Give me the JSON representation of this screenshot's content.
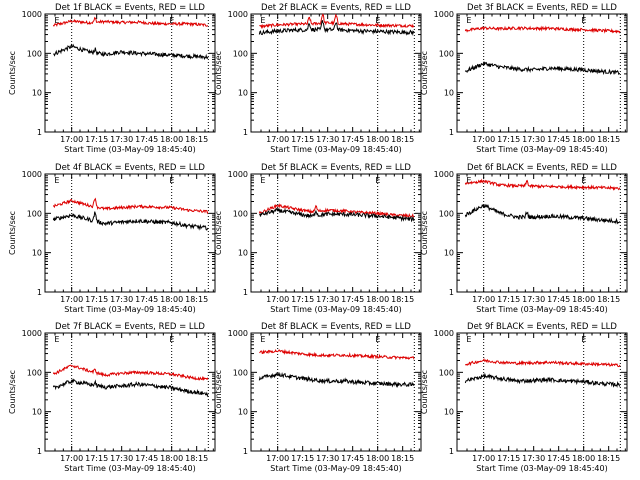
{
  "chart_data": {
    "type": "line",
    "layout": "3x3 grid",
    "shared": {
      "xlabel": "Start Time (03-May-09 18:45:40)",
      "ylabel": "Counts/sec",
      "x_range_minutes": [
        55,
        1100
      ],
      "x_ticks": [
        {
          "value": 0,
          "label": "17:00"
        },
        {
          "value": 15,
          "label": "17:15"
        },
        {
          "value": 30,
          "label": "17:30"
        },
        {
          "value": 45,
          "label": "17:45"
        },
        {
          "value": 60,
          "label": "18:00"
        },
        {
          "value": 75,
          "label": "18:15"
        }
      ],
      "y_scale": "log",
      "ylim": [
        1,
        1000
      ],
      "y_ticks": [
        {
          "value": 1,
          "label": "1"
        },
        {
          "value": 10,
          "label": "10"
        },
        {
          "value": 100,
          "label": "100"
        },
        {
          "value": 1000,
          "label": "1000"
        }
      ],
      "x_start": -11,
      "x_end": 82,
      "dotted_lines_x": [
        0,
        60,
        82
      ],
      "markers": [
        {
          "x": -11,
          "label": "E"
        },
        {
          "x": 58,
          "label": "E"
        }
      ],
      "series_colors": {
        "events": "#000000",
        "lld": "#dd0000"
      }
    },
    "panels": [
      {
        "title": "Det 1f BLACK = Events, RED = LLD",
        "series": [
          {
            "key": "lld",
            "points": [
              [
                -11,
                510
              ],
              [
                0,
                660
              ],
              [
                10,
                600
              ],
              [
                20,
                640
              ],
              [
                30,
                610
              ],
              [
                40,
                620
              ],
              [
                50,
                570
              ],
              [
                60,
                560
              ],
              [
                70,
                560
              ],
              [
                82,
                520
              ]
            ]
          },
          {
            "key": "events",
            "points": [
              [
                -11,
                95
              ],
              [
                0,
                150
              ],
              [
                10,
                110
              ],
              [
                15,
                100
              ],
              [
                20,
                95
              ],
              [
                30,
                110
              ],
              [
                40,
                100
              ],
              [
                50,
                95
              ],
              [
                60,
                90
              ],
              [
                70,
                85
              ],
              [
                82,
                80
              ]
            ]
          }
        ],
        "spikes": [
          {
            "x": 14,
            "events": 130
          }
        ]
      },
      {
        "title": "Det 2f BLACK = Events, RED = LLD",
        "series": [
          {
            "key": "lld",
            "points": [
              [
                -11,
                480
              ],
              [
                0,
                530
              ],
              [
                10,
                550
              ],
              [
                20,
                560
              ],
              [
                30,
                600
              ],
              [
                40,
                560
              ],
              [
                50,
                540
              ],
              [
                60,
                520
              ],
              [
                70,
                510
              ],
              [
                82,
                500
              ]
            ]
          },
          {
            "key": "events",
            "points": [
              [
                -11,
                330
              ],
              [
                0,
                370
              ],
              [
                10,
                390
              ],
              [
                20,
                400
              ],
              [
                30,
                400
              ],
              [
                40,
                390
              ],
              [
                50,
                370
              ],
              [
                60,
                360
              ],
              [
                70,
                350
              ],
              [
                82,
                340
              ]
            ]
          }
        ],
        "spikes": [
          {
            "x": 19,
            "events": 600
          },
          {
            "x": 27,
            "events": 700
          },
          {
            "x": 35,
            "events": 650
          }
        ]
      },
      {
        "title": "Det 3f BLACK = Events, RED = LLD",
        "series": [
          {
            "key": "lld",
            "points": [
              [
                -11,
                380
              ],
              [
                0,
                440
              ],
              [
                10,
                420
              ],
              [
                20,
                440
              ],
              [
                30,
                430
              ],
              [
                40,
                430
              ],
              [
                50,
                410
              ],
              [
                60,
                400
              ],
              [
                70,
                380
              ],
              [
                82,
                360
              ]
            ]
          },
          {
            "key": "events",
            "points": [
              [
                -11,
                35
              ],
              [
                0,
                55
              ],
              [
                10,
                45
              ],
              [
                20,
                40
              ],
              [
                30,
                38
              ],
              [
                40,
                42
              ],
              [
                50,
                40
              ],
              [
                60,
                38
              ],
              [
                70,
                35
              ],
              [
                82,
                32
              ]
            ]
          }
        ],
        "spikes": []
      },
      {
        "title": "Det 4f BLACK = Events, RED = LLD",
        "series": [
          {
            "key": "lld",
            "points": [
              [
                -11,
                150
              ],
              [
                0,
                210
              ],
              [
                10,
                160
              ],
              [
                20,
                130
              ],
              [
                30,
                140
              ],
              [
                40,
                150
              ],
              [
                50,
                145
              ],
              [
                60,
                140
              ],
              [
                70,
                120
              ],
              [
                82,
                110
              ]
            ]
          },
          {
            "key": "events",
            "points": [
              [
                -11,
                70
              ],
              [
                0,
                90
              ],
              [
                10,
                70
              ],
              [
                20,
                55
              ],
              [
                30,
                60
              ],
              [
                40,
                65
              ],
              [
                50,
                60
              ],
              [
                60,
                58
              ],
              [
                70,
                48
              ],
              [
                82,
                42
              ]
            ]
          }
        ],
        "spikes": [
          {
            "x": 14,
            "events": 110
          }
        ]
      },
      {
        "title": "Det 5f BLACK = Events, RED = LLD",
        "series": [
          {
            "key": "lld",
            "points": [
              [
                -11,
                100
              ],
              [
                0,
                160
              ],
              [
                10,
                130
              ],
              [
                20,
                110
              ],
              [
                30,
                120
              ],
              [
                40,
                115
              ],
              [
                50,
                105
              ],
              [
                60,
                100
              ],
              [
                70,
                90
              ],
              [
                82,
                85
              ]
            ]
          },
          {
            "key": "events",
            "points": [
              [
                -11,
                90
              ],
              [
                0,
                120
              ],
              [
                10,
                100
              ],
              [
                20,
                85
              ],
              [
                30,
                95
              ],
              [
                40,
                95
              ],
              [
                50,
                90
              ],
              [
                60,
                85
              ],
              [
                70,
                78
              ],
              [
                82,
                70
              ]
            ]
          }
        ],
        "spikes": [
          {
            "x": 23,
            "events": 120
          }
        ]
      },
      {
        "title": "Det 6f BLACK = Events, RED = LLD",
        "series": [
          {
            "key": "lld",
            "points": [
              [
                -11,
                580
              ],
              [
                0,
                660
              ],
              [
                10,
                520
              ],
              [
                20,
                500
              ],
              [
                30,
                490
              ],
              [
                40,
                480
              ],
              [
                50,
                470
              ],
              [
                60,
                460
              ],
              [
                70,
                450
              ],
              [
                82,
                430
              ]
            ]
          },
          {
            "key": "events",
            "points": [
              [
                -11,
                90
              ],
              [
                0,
                160
              ],
              [
                10,
                100
              ],
              [
                20,
                80
              ],
              [
                30,
                80
              ],
              [
                40,
                85
              ],
              [
                50,
                80
              ],
              [
                60,
                75
              ],
              [
                70,
                68
              ],
              [
                82,
                62
              ]
            ]
          }
        ],
        "spikes": [
          {
            "x": 26,
            "events": 110
          }
        ]
      },
      {
        "title": "Det 7f BLACK = Events, RED = LLD",
        "series": [
          {
            "key": "lld",
            "points": [
              [
                -11,
                90
              ],
              [
                0,
                150
              ],
              [
                10,
                110
              ],
              [
                20,
                85
              ],
              [
                30,
                95
              ],
              [
                40,
                100
              ],
              [
                50,
                95
              ],
              [
                60,
                90
              ],
              [
                70,
                75
              ],
              [
                82,
                65
              ]
            ]
          },
          {
            "key": "events",
            "points": [
              [
                -11,
                40
              ],
              [
                0,
                60
              ],
              [
                10,
                50
              ],
              [
                20,
                42
              ],
              [
                30,
                45
              ],
              [
                40,
                50
              ],
              [
                50,
                45
              ],
              [
                60,
                40
              ],
              [
                70,
                33
              ],
              [
                82,
                28
              ]
            ]
          }
        ],
        "spikes": [
          {
            "x": 14,
            "events": 55
          }
        ]
      },
      {
        "title": "Det 8f BLACK = Events, RED = LLD",
        "series": [
          {
            "key": "lld",
            "points": [
              [
                -11,
                320
              ],
              [
                0,
                350
              ],
              [
                10,
                310
              ],
              [
                20,
                280
              ],
              [
                30,
                270
              ],
              [
                40,
                275
              ],
              [
                50,
                260
              ],
              [
                60,
                250
              ],
              [
                70,
                240
              ],
              [
                82,
                230
              ]
            ]
          },
          {
            "key": "events",
            "points": [
              [
                -11,
                70
              ],
              [
                0,
                90
              ],
              [
                10,
                75
              ],
              [
                20,
                65
              ],
              [
                30,
                60
              ],
              [
                40,
                60
              ],
              [
                50,
                55
              ],
              [
                60,
                52
              ],
              [
                70,
                50
              ],
              [
                82,
                48
              ]
            ]
          }
        ],
        "spikes": []
      },
      {
        "title": "Det 9f BLACK = Events, RED = LLD",
        "series": [
          {
            "key": "lld",
            "points": [
              [
                -11,
                160
              ],
              [
                0,
                200
              ],
              [
                10,
                180
              ],
              [
                20,
                170
              ],
              [
                30,
                175
              ],
              [
                40,
                180
              ],
              [
                50,
                170
              ],
              [
                60,
                165
              ],
              [
                70,
                160
              ],
              [
                82,
                150
              ]
            ]
          },
          {
            "key": "events",
            "points": [
              [
                -11,
                60
              ],
              [
                0,
                80
              ],
              [
                10,
                70
              ],
              [
                20,
                60
              ],
              [
                30,
                62
              ],
              [
                40,
                65
              ],
              [
                50,
                60
              ],
              [
                60,
                58
              ],
              [
                70,
                52
              ],
              [
                82,
                48
              ]
            ]
          }
        ],
        "spikes": []
      }
    ]
  }
}
